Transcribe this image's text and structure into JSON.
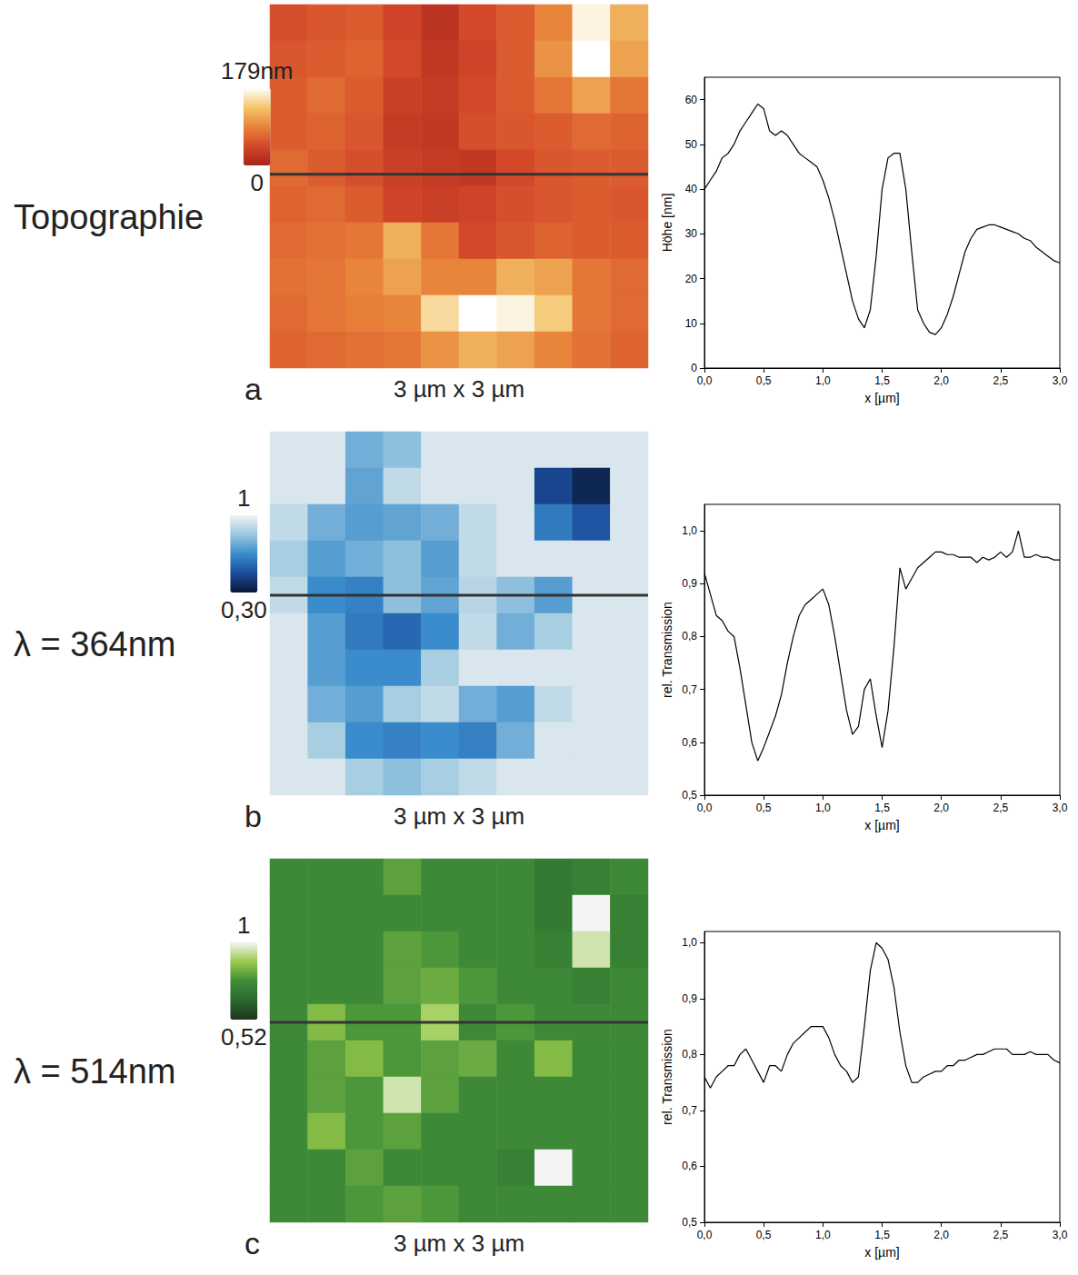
{
  "chart_data": [
    {
      "type": "heatmap",
      "title": "Topographie",
      "panel": "a",
      "caption": "3 µm x 3 µm",
      "size_um": 3,
      "profile_y_um": 1.6,
      "colorbar": {
        "range": [
          0,
          179
        ],
        "ticks": [
          0,
          {
            "value": 179,
            "label": "179nm"
          }
        ],
        "colormap": [
          "#a8231b",
          "#d4482a",
          "#e8843a",
          "#f4c56a",
          "#ffffff"
        ]
      },
      "cells": [
        [
          50,
          55,
          60,
          40,
          20,
          45,
          60,
          90,
          170,
          120
        ],
        [
          55,
          60,
          65,
          45,
          25,
          40,
          60,
          100,
          179,
          110
        ],
        [
          60,
          70,
          60,
          35,
          30,
          45,
          60,
          80,
          110,
          80
        ],
        [
          60,
          65,
          55,
          30,
          25,
          50,
          55,
          60,
          70,
          65
        ],
        [
          70,
          60,
          50,
          35,
          30,
          25,
          45,
          55,
          60,
          60
        ],
        [
          65,
          70,
          60,
          40,
          35,
          40,
          50,
          55,
          60,
          55
        ],
        [
          70,
          75,
          80,
          120,
          80,
          45,
          55,
          65,
          60,
          60
        ],
        [
          75,
          80,
          90,
          110,
          90,
          90,
          120,
          110,
          80,
          70
        ],
        [
          70,
          80,
          85,
          90,
          150,
          179,
          170,
          140,
          80,
          70
        ],
        [
          65,
          70,
          75,
          80,
          100,
          120,
          110,
          90,
          75,
          65
        ]
      ]
    },
    {
      "type": "line",
      "color": "#000000",
      "grid": false,
      "xlabel": "x [µm]",
      "ylabel": "Höhe [nm]",
      "xlim": [
        0,
        3
      ],
      "ylim": [
        0,
        65
      ],
      "xticks": [
        {
          "value": 0,
          "label": "0,0"
        },
        {
          "value": 0.5,
          "label": "0,5"
        },
        {
          "value": 1,
          "label": "1,0"
        },
        {
          "value": 1.5,
          "label": "1,5"
        },
        {
          "value": 2,
          "label": "2,0"
        },
        {
          "value": 2.5,
          "label": "2,5"
        },
        {
          "value": 3,
          "label": "3,0"
        }
      ],
      "yticks": [
        0,
        10,
        20,
        30,
        40,
        50,
        60
      ],
      "x": [
        0,
        0.05,
        0.1,
        0.15,
        0.2,
        0.25,
        0.3,
        0.35,
        0.4,
        0.45,
        0.5,
        0.55,
        0.6,
        0.65,
        0.7,
        0.75,
        0.8,
        0.85,
        0.9,
        0.95,
        1,
        1.05,
        1.1,
        1.15,
        1.2,
        1.25,
        1.3,
        1.35,
        1.4,
        1.45,
        1.5,
        1.55,
        1.6,
        1.65,
        1.7,
        1.75,
        1.8,
        1.85,
        1.9,
        1.95,
        2,
        2.05,
        2.1,
        2.15,
        2.2,
        2.25,
        2.3,
        2.35,
        2.4,
        2.45,
        2.5,
        2.55,
        2.6,
        2.65,
        2.7,
        2.75,
        2.8,
        2.85,
        2.9,
        2.95,
        3
      ],
      "values": [
        40,
        42,
        44,
        47,
        48,
        50,
        53,
        55,
        57,
        59,
        58,
        53,
        52,
        53,
        52,
        50,
        48,
        47,
        46,
        45,
        42,
        38,
        33,
        27,
        21,
        15,
        11,
        9,
        13,
        25,
        40,
        47,
        48,
        48,
        40,
        26,
        13,
        10,
        8,
        7.5,
        9,
        12,
        16,
        21,
        26,
        29,
        31,
        31.5,
        32,
        32,
        31.5,
        31,
        30.5,
        30,
        29,
        28.5,
        27,
        26,
        25,
        24,
        23.5
      ]
    },
    {
      "type": "heatmap",
      "title": "λ = 364nm",
      "panel": "b",
      "caption": "3 µm x 3 µm",
      "size_um": 3,
      "profile_y_um": 1.65,
      "colorbar": {
        "range": [
          0.3,
          1
        ],
        "ticks": [
          {
            "value": 0.3,
            "label": "0,30"
          },
          1
        ],
        "colormap": [
          "#0b1836",
          "#1a4c9c",
          "#3a8ccc",
          "#9cc8df",
          "#f2f2f2"
        ]
      },
      "cells": [
        [
          0.95,
          0.95,
          0.75,
          0.8,
          0.95,
          0.95,
          0.95,
          0.95,
          0.95,
          0.95
        ],
        [
          0.95,
          0.95,
          0.72,
          0.9,
          0.95,
          0.95,
          0.95,
          0.45,
          0.35,
          0.95
        ],
        [
          0.9,
          0.75,
          0.7,
          0.72,
          0.75,
          0.9,
          0.95,
          0.6,
          0.5,
          0.95
        ],
        [
          0.85,
          0.7,
          0.75,
          0.8,
          0.7,
          0.9,
          0.95,
          0.95,
          0.95,
          0.95
        ],
        [
          0.9,
          0.65,
          0.62,
          0.8,
          0.72,
          0.88,
          0.8,
          0.7,
          0.95,
          0.95
        ],
        [
          0.95,
          0.7,
          0.6,
          0.55,
          0.65,
          0.9,
          0.75,
          0.85,
          0.95,
          0.95
        ],
        [
          0.95,
          0.7,
          0.65,
          0.65,
          0.85,
          0.95,
          0.95,
          0.95,
          0.95,
          0.95
        ],
        [
          0.95,
          0.75,
          0.7,
          0.85,
          0.9,
          0.75,
          0.7,
          0.9,
          0.95,
          0.95
        ],
        [
          0.95,
          0.85,
          0.65,
          0.62,
          0.65,
          0.62,
          0.75,
          0.95,
          0.95,
          0.95
        ],
        [
          0.95,
          0.95,
          0.85,
          0.8,
          0.85,
          0.9,
          0.95,
          0.95,
          0.95,
          0.95
        ]
      ]
    },
    {
      "type": "line",
      "color": "#000000",
      "grid": false,
      "xlabel": "x [µm]",
      "ylabel": "rel. Transmission",
      "xlim": [
        0,
        3
      ],
      "ylim": [
        0.5,
        1.05
      ],
      "xticks": [
        {
          "value": 0,
          "label": "0,0"
        },
        {
          "value": 0.5,
          "label": "0,5"
        },
        {
          "value": 1,
          "label": "1,0"
        },
        {
          "value": 1.5,
          "label": "1,5"
        },
        {
          "value": 2,
          "label": "2,0"
        },
        {
          "value": 2.5,
          "label": "2,5"
        },
        {
          "value": 3,
          "label": "3,0"
        }
      ],
      "yticks": [
        {
          "value": 0.5,
          "label": "0,5"
        },
        {
          "value": 0.6,
          "label": "0,6"
        },
        {
          "value": 0.7,
          "label": "0,7"
        },
        {
          "value": 0.8,
          "label": "0,8"
        },
        {
          "value": 0.9,
          "label": "0,9"
        },
        {
          "value": 1,
          "label": "1,0"
        }
      ],
      "x": [
        0,
        0.05,
        0.1,
        0.15,
        0.2,
        0.25,
        0.3,
        0.35,
        0.4,
        0.45,
        0.5,
        0.55,
        0.6,
        0.65,
        0.7,
        0.75,
        0.8,
        0.85,
        0.9,
        0.95,
        1,
        1.05,
        1.1,
        1.15,
        1.2,
        1.25,
        1.3,
        1.35,
        1.4,
        1.45,
        1.5,
        1.55,
        1.6,
        1.65,
        1.7,
        1.75,
        1.8,
        1.85,
        1.9,
        1.95,
        2,
        2.05,
        2.1,
        2.15,
        2.2,
        2.25,
        2.3,
        2.35,
        2.4,
        2.45,
        2.5,
        2.55,
        2.6,
        2.65,
        2.7,
        2.75,
        2.8,
        2.85,
        2.9,
        2.95,
        3
      ],
      "values": [
        0.92,
        0.88,
        0.84,
        0.83,
        0.81,
        0.8,
        0.74,
        0.67,
        0.6,
        0.565,
        0.59,
        0.62,
        0.65,
        0.69,
        0.75,
        0.8,
        0.84,
        0.86,
        0.87,
        0.88,
        0.89,
        0.86,
        0.8,
        0.73,
        0.66,
        0.615,
        0.63,
        0.7,
        0.72,
        0.65,
        0.59,
        0.66,
        0.78,
        0.93,
        0.89,
        0.91,
        0.93,
        0.94,
        0.95,
        0.96,
        0.96,
        0.955,
        0.955,
        0.95,
        0.95,
        0.95,
        0.94,
        0.95,
        0.945,
        0.95,
        0.96,
        0.95,
        0.96,
        1.0,
        0.95,
        0.95,
        0.955,
        0.95,
        0.95,
        0.945,
        0.945
      ]
    },
    {
      "type": "heatmap",
      "title": "λ = 514nm",
      "panel": "c",
      "caption": "3 µm x 3 µm",
      "size_um": 3,
      "profile_y_um": 1.65,
      "colorbar": {
        "range": [
          0.52,
          1
        ],
        "ticks": [
          {
            "value": 0.52,
            "label": "0,52"
          },
          1
        ],
        "colormap": [
          "#1d361d",
          "#2d682d",
          "#3e8c38",
          "#9acb4a",
          "#f4f4f4"
        ]
      },
      "cells": [
        [
          0.75,
          0.75,
          0.75,
          0.8,
          0.75,
          0.75,
          0.75,
          0.7,
          0.72,
          0.75
        ],
        [
          0.75,
          0.75,
          0.75,
          0.75,
          0.75,
          0.75,
          0.75,
          0.7,
          1.0,
          0.72
        ],
        [
          0.75,
          0.75,
          0.75,
          0.8,
          0.78,
          0.75,
          0.75,
          0.72,
          0.95,
          0.72
        ],
        [
          0.75,
          0.75,
          0.75,
          0.8,
          0.82,
          0.78,
          0.75,
          0.75,
          0.72,
          0.75
        ],
        [
          0.75,
          0.85,
          0.78,
          0.78,
          0.9,
          0.75,
          0.78,
          0.75,
          0.75,
          0.75
        ],
        [
          0.75,
          0.8,
          0.85,
          0.78,
          0.8,
          0.82,
          0.75,
          0.85,
          0.75,
          0.75
        ],
        [
          0.75,
          0.8,
          0.78,
          0.95,
          0.8,
          0.75,
          0.75,
          0.75,
          0.75,
          0.75
        ],
        [
          0.75,
          0.85,
          0.78,
          0.8,
          0.75,
          0.75,
          0.75,
          0.75,
          0.75,
          0.75
        ],
        [
          0.75,
          0.75,
          0.8,
          0.75,
          0.75,
          0.75,
          0.72,
          1.0,
          0.75,
          0.75
        ],
        [
          0.75,
          0.75,
          0.78,
          0.8,
          0.78,
          0.75,
          0.75,
          0.75,
          0.75,
          0.75
        ]
      ]
    },
    {
      "type": "line",
      "color": "#000000",
      "grid": false,
      "xlabel": "x [µm]",
      "ylabel": "rel. Transmission",
      "xlim": [
        0,
        3
      ],
      "ylim": [
        0.5,
        1.02
      ],
      "xticks": [
        {
          "value": 0,
          "label": "0,0"
        },
        {
          "value": 0.5,
          "label": "0,5"
        },
        {
          "value": 1,
          "label": "1,0"
        },
        {
          "value": 1.5,
          "label": "1,5"
        },
        {
          "value": 2,
          "label": "2,0"
        },
        {
          "value": 2.5,
          "label": "2,5"
        },
        {
          "value": 3,
          "label": "3,0"
        }
      ],
      "yticks": [
        {
          "value": 0.5,
          "label": "0,5"
        },
        {
          "value": 0.6,
          "label": "0,6"
        },
        {
          "value": 0.7,
          "label": "0,7"
        },
        {
          "value": 0.8,
          "label": "0,8"
        },
        {
          "value": 0.9,
          "label": "0,9"
        },
        {
          "value": 1,
          "label": "1,0"
        }
      ],
      "x": [
        0,
        0.05,
        0.1,
        0.15,
        0.2,
        0.25,
        0.3,
        0.35,
        0.4,
        0.45,
        0.5,
        0.55,
        0.6,
        0.65,
        0.7,
        0.75,
        0.8,
        0.85,
        0.9,
        0.95,
        1,
        1.05,
        1.1,
        1.15,
        1.2,
        1.25,
        1.3,
        1.35,
        1.4,
        1.45,
        1.5,
        1.55,
        1.6,
        1.65,
        1.7,
        1.75,
        1.8,
        1.85,
        1.9,
        1.95,
        2,
        2.05,
        2.1,
        2.15,
        2.2,
        2.25,
        2.3,
        2.35,
        2.4,
        2.45,
        2.5,
        2.55,
        2.6,
        2.65,
        2.7,
        2.75,
        2.8,
        2.85,
        2.9,
        2.95,
        3
      ],
      "values": [
        0.76,
        0.74,
        0.76,
        0.77,
        0.78,
        0.78,
        0.8,
        0.81,
        0.79,
        0.77,
        0.75,
        0.78,
        0.78,
        0.77,
        0.8,
        0.82,
        0.83,
        0.84,
        0.85,
        0.85,
        0.85,
        0.83,
        0.8,
        0.78,
        0.77,
        0.75,
        0.76,
        0.85,
        0.95,
        1.0,
        0.99,
        0.97,
        0.92,
        0.84,
        0.78,
        0.75,
        0.75,
        0.76,
        0.765,
        0.77,
        0.77,
        0.78,
        0.78,
        0.79,
        0.79,
        0.795,
        0.8,
        0.8,
        0.805,
        0.81,
        0.81,
        0.81,
        0.8,
        0.8,
        0.8,
        0.805,
        0.8,
        0.8,
        0.8,
        0.79,
        0.785
      ]
    }
  ]
}
